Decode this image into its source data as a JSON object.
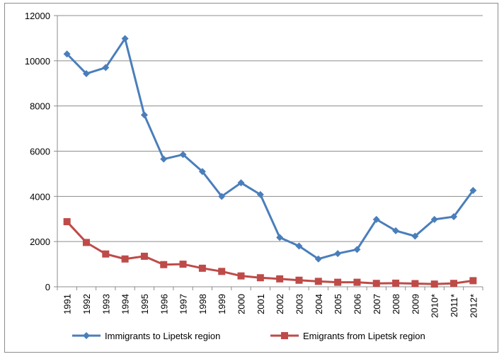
{
  "chart_data": {
    "type": "line",
    "title": "",
    "xlabel": "",
    "ylabel": "",
    "categories": [
      "1991",
      "1992",
      "1993",
      "1994",
      "1995",
      "1996",
      "1997",
      "1998",
      "1999",
      "2000",
      "2001",
      "2002",
      "2003",
      "2004",
      "2005",
      "2006",
      "2007",
      "2008",
      "2009",
      "2010*",
      "2011*",
      "2012*"
    ],
    "ylim": [
      0,
      12000
    ],
    "yticks": [
      0,
      2000,
      4000,
      6000,
      8000,
      10000,
      12000
    ],
    "grid": "horizontal",
    "legend_position": "bottom",
    "series": [
      {
        "name": "Immigrants to Lipetsk region",
        "color": "#4a7ebb",
        "marker": "diamond",
        "values": [
          10300,
          9430,
          9700,
          10980,
          7600,
          5650,
          5850,
          5100,
          4000,
          4600,
          4080,
          2180,
          1800,
          1230,
          1470,
          1650,
          2980,
          2480,
          2240,
          2980,
          3100,
          4260
        ]
      },
      {
        "name": "Emigrants from Lipetsk region",
        "color": "#be4b48",
        "marker": "square",
        "values": [
          2880,
          1960,
          1450,
          1230,
          1350,
          980,
          1000,
          820,
          680,
          480,
          400,
          350,
          290,
          240,
          200,
          200,
          150,
          160,
          140,
          120,
          150,
          270
        ]
      }
    ]
  }
}
